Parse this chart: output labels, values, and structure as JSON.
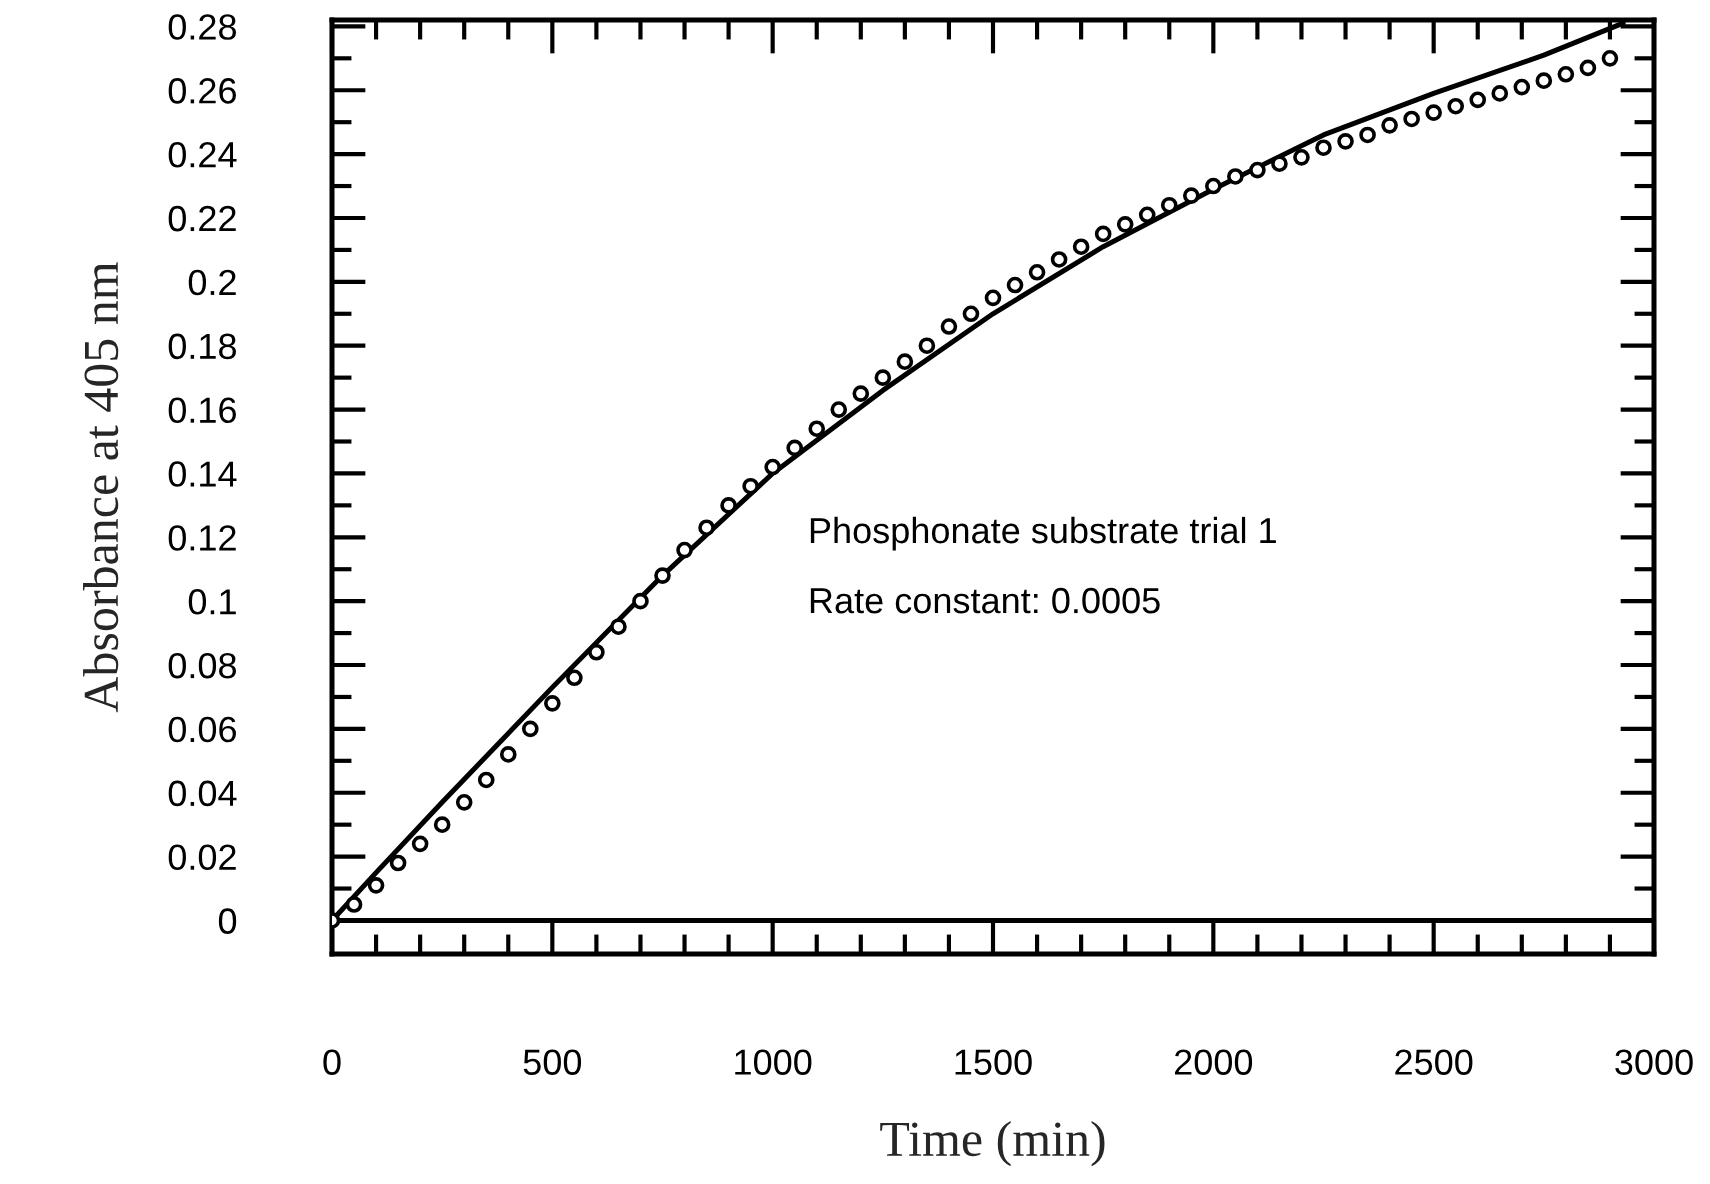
{
  "chart_data": {
    "type": "scatter",
    "xlabel": "Time (min)",
    "ylabel": "Absorbance at 405 nm",
    "annotations": [
      "Phosphonate substrate trial 1",
      "Rate constant: 0.0005"
    ],
    "xlim": [
      0,
      3000
    ],
    "xticks": [
      0,
      500,
      1000,
      1500,
      2000,
      2500,
      3000
    ],
    "ylim": [
      -0.0105,
      0.282
    ],
    "yticks": [
      0,
      0.02,
      0.04,
      0.06,
      0.08,
      0.1,
      0.12,
      0.14,
      0.16,
      0.18,
      0.2,
      0.22,
      0.24,
      0.26,
      0.28
    ],
    "grid": false,
    "legend": false,
    "ref_lines": [
      {
        "axis": "y",
        "value": 0,
        "color": "#000000"
      }
    ],
    "series": [
      {
        "color": "#000000",
        "marker": "circle",
        "x": [
          0,
          50,
          100,
          150,
          200,
          250,
          300,
          350,
          400,
          450,
          500,
          550,
          600,
          650,
          700,
          750,
          800,
          850,
          900,
          950,
          1000,
          1050,
          1100,
          1150,
          1200,
          1250,
          1300,
          1350,
          1400,
          1450,
          1500,
          1550,
          1600,
          1650,
          1700,
          1750,
          1800,
          1850,
          1900,
          1950,
          2000,
          2050,
          2100,
          2150,
          2200,
          2250,
          2300,
          2350,
          2400,
          2450,
          2500,
          2550,
          2600,
          2650,
          2700,
          2750,
          2800,
          2850,
          2900
        ],
        "values": [
          0.0,
          0.005,
          0.011,
          0.018,
          0.024,
          0.03,
          0.037,
          0.044,
          0.052,
          0.06,
          0.068,
          0.076,
          0.084,
          0.092,
          0.1,
          0.108,
          0.116,
          0.123,
          0.13,
          0.136,
          0.142,
          0.148,
          0.154,
          0.16,
          0.165,
          0.17,
          0.175,
          0.18,
          0.186,
          0.19,
          0.195,
          0.199,
          0.203,
          0.207,
          0.211,
          0.215,
          0.218,
          0.221,
          0.224,
          0.227,
          0.23,
          0.233,
          0.235,
          0.237,
          0.239,
          0.242,
          0.244,
          0.246,
          0.249,
          0.251,
          0.253,
          0.255,
          0.257,
          0.259,
          0.261,
          0.263,
          0.265,
          0.267,
          0.27
        ]
      },
      {
        "type": "line",
        "color": "#000000",
        "marker": "none",
        "line_style": "solid",
        "x": [
          0,
          100,
          250,
          500,
          750,
          1000,
          1250,
          1500,
          1750,
          2000,
          2250,
          2500,
          2750,
          2930
        ],
        "values": [
          0.0,
          0.015,
          0.037,
          0.073,
          0.108,
          0.14,
          0.166,
          0.19,
          0.211,
          0.229,
          0.246,
          0.259,
          0.271,
          0.281
        ]
      }
    ]
  }
}
